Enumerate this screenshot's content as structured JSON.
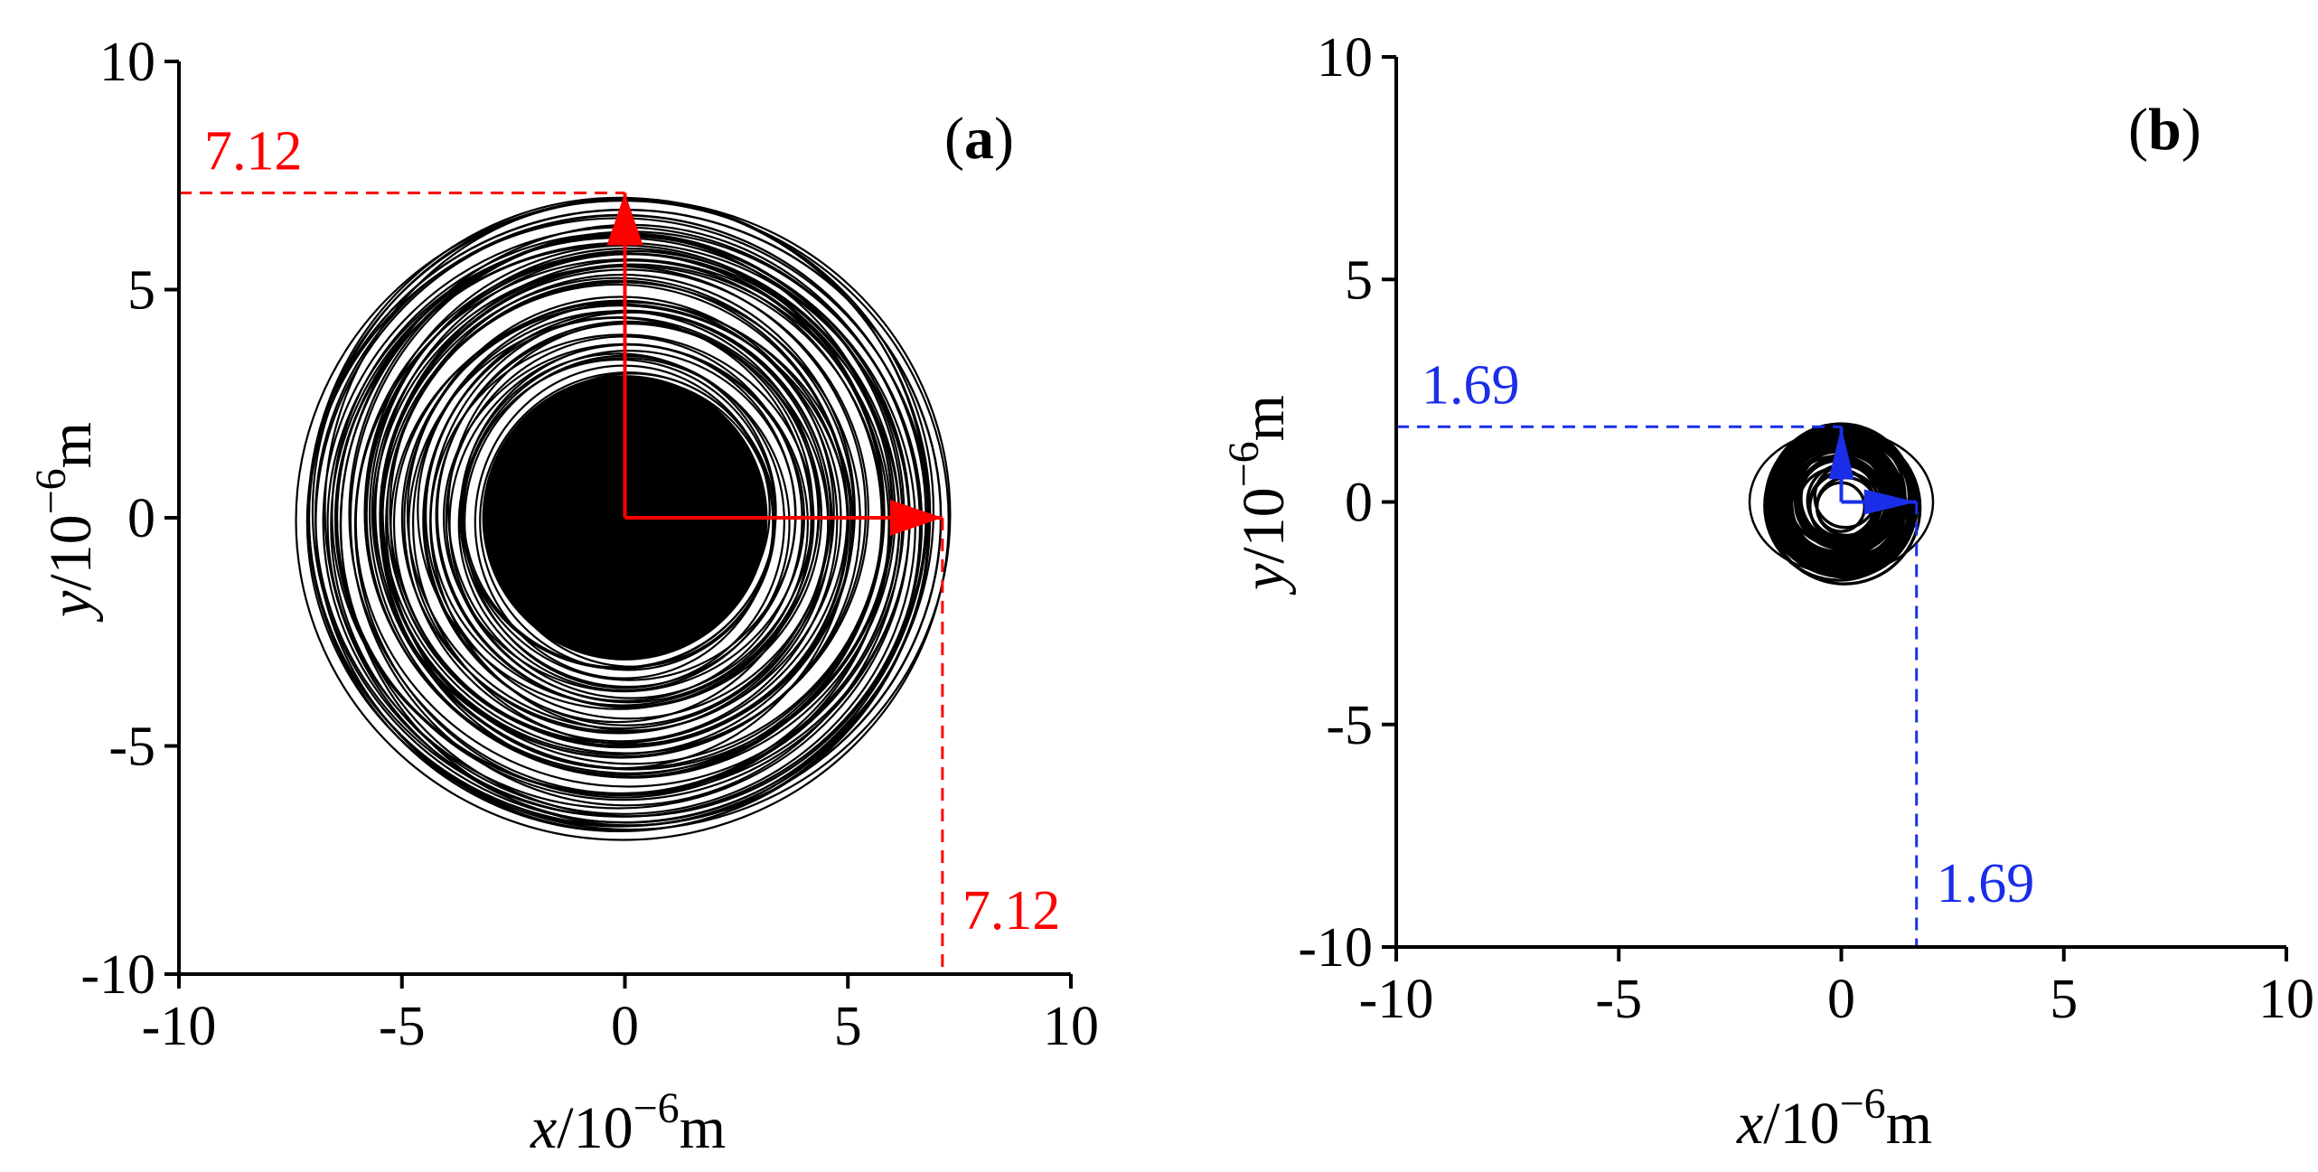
{
  "chart_data": [
    {
      "type": "line",
      "panel_label_open": "(",
      "panel_label_letter": "a",
      "panel_label_close": ")",
      "xlabel": {
        "var": "x",
        "prefix": "/10",
        "exp": "−6",
        "unit": "m"
      },
      "ylabel": {
        "var": "y",
        "prefix": "/10",
        "exp": "−6",
        "unit": "m"
      },
      "xlim": [
        -10,
        10
      ],
      "ylim": [
        -10,
        10
      ],
      "xticks": [
        -10,
        -5,
        0,
        5,
        10
      ],
      "yticks": [
        -10,
        -5,
        0,
        5,
        10
      ],
      "xtick_labels": [
        "-10",
        "-5",
        "0",
        "5",
        "10"
      ],
      "ytick_labels": [
        "-10",
        "-5",
        "0",
        "5",
        "10"
      ],
      "orbit": {
        "max_radius": 7.12,
        "min_radius": 2.6,
        "center": [
          0,
          0
        ],
        "dense_fill_radius": 3.2
      },
      "annotations": [
        {
          "kind": "amplitude",
          "value": 7.12,
          "label": "7.12",
          "direction": "y",
          "color": "#ff0000"
        },
        {
          "kind": "amplitude",
          "value": 7.12,
          "label": "7.12",
          "direction": "x",
          "color": "#ff0000"
        }
      ]
    },
    {
      "type": "line",
      "panel_label_open": "(",
      "panel_label_letter": "b",
      "panel_label_close": ")",
      "xlabel": {
        "var": "x",
        "prefix": "/10",
        "exp": "−6",
        "unit": "m"
      },
      "ylabel": {
        "var": "y",
        "prefix": "/10",
        "exp": "−6",
        "unit": "m"
      },
      "xlim": [
        -10,
        10
      ],
      "ylim": [
        -10,
        10
      ],
      "xticks": [
        -10,
        -5,
        0,
        5,
        10
      ],
      "yticks": [
        -10,
        -5,
        0,
        5,
        10
      ],
      "xtick_labels": [
        "-10",
        "-5",
        "0",
        "5",
        "10"
      ],
      "ytick_labels": [
        "-10",
        "-5",
        "0",
        "5",
        "10"
      ],
      "orbit": {
        "max_radius": 1.69,
        "min_radius": 0.55,
        "center": [
          0,
          0
        ]
      },
      "annotations": [
        {
          "kind": "amplitude",
          "value": 1.69,
          "label": "1.69",
          "direction": "y",
          "color": "#1a2ee8"
        },
        {
          "kind": "amplitude",
          "value": 1.69,
          "label": "1.69",
          "direction": "x",
          "color": "#1a2ee8"
        }
      ]
    }
  ]
}
